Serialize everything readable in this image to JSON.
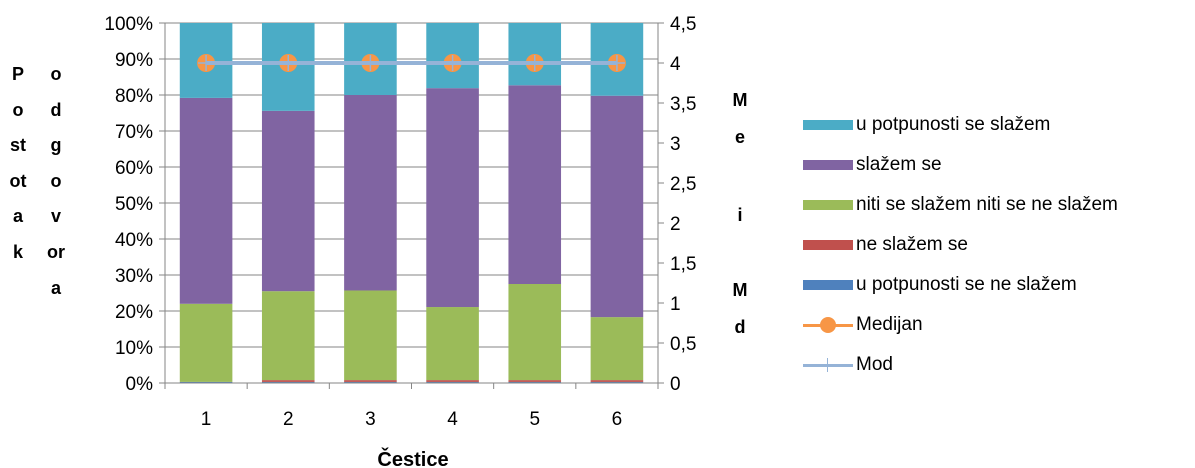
{
  "chart_data": {
    "type": "bar",
    "stacked": true,
    "xlabel": "Čestice",
    "ylabel_left_col1": "Postotak",
    "ylabel_left_col2": "odgovora",
    "ylabel_right_col1": "Me",
    "ylabel_right_conj": "i",
    "ylabel_right_col2": "Md",
    "categories": [
      "1",
      "2",
      "3",
      "4",
      "5",
      "6"
    ],
    "y_left": {
      "ticks": [
        "0%",
        "10%",
        "20%",
        "30%",
        "40%",
        "50%",
        "60%",
        "70%",
        "80%",
        "90%",
        "100%"
      ],
      "lim": [
        0,
        100
      ]
    },
    "y_right": {
      "ticks": [
        "0",
        "0,5",
        "1",
        "1,5",
        "2",
        "2,5",
        "3",
        "3,5",
        "4",
        "4,5"
      ],
      "lim": [
        0,
        4.5
      ]
    },
    "grid": true,
    "legend_position": "right",
    "series": [
      {
        "name": "u potpunosti se ne slažem",
        "color": "#4f81bd",
        "values": [
          0.3,
          0.3,
          0.3,
          0.3,
          0.3,
          0.3
        ]
      },
      {
        "name": "ne slažem se",
        "color": "#c0504d",
        "values": [
          0,
          0.5,
          0.5,
          0.5,
          0.5,
          0.5
        ]
      },
      {
        "name": "niti se slažem niti se ne slažem",
        "color": "#9bbb59",
        "values": [
          21.7,
          24.7,
          24.9,
          20.3,
          26.7,
          17.5
        ]
      },
      {
        "name": "slažem se",
        "color": "#8064a2",
        "values": [
          57.2,
          50.1,
          54.3,
          60.8,
          55.2,
          61.5
        ]
      },
      {
        "name": "u potpunosti se slažem",
        "color": "#4bacc6",
        "values": [
          20.8,
          24.4,
          20.0,
          18.1,
          17.3,
          20.2
        ]
      }
    ],
    "lines": [
      {
        "name": "Medijan",
        "color": "#f79646",
        "axis": "right",
        "marker": "circle",
        "values": [
          4,
          4,
          4,
          4,
          4,
          4
        ]
      },
      {
        "name": "Mod",
        "color": "#95b3d7",
        "axis": "right",
        "marker": "plus",
        "values": [
          4,
          4,
          4,
          4,
          4,
          4
        ]
      }
    ]
  },
  "legend": [
    {
      "name": "u potpunosti se slažem",
      "color": "#4bacc6",
      "kind": "box"
    },
    {
      "name": "slažem se",
      "color": "#8064a2",
      "kind": "box"
    },
    {
      "name": "niti se slažem niti se ne slažem",
      "color": "#9bbb59",
      "kind": "box"
    },
    {
      "name": "ne slažem se",
      "color": "#c0504d",
      "kind": "box"
    },
    {
      "name": "u potpunosti se ne slažem",
      "color": "#4f81bd",
      "kind": "box"
    },
    {
      "name": "Medijan",
      "color": "#f79646",
      "kind": "line-circle"
    },
    {
      "name": "Mod",
      "color": "#95b3d7",
      "kind": "line-plus"
    }
  ]
}
